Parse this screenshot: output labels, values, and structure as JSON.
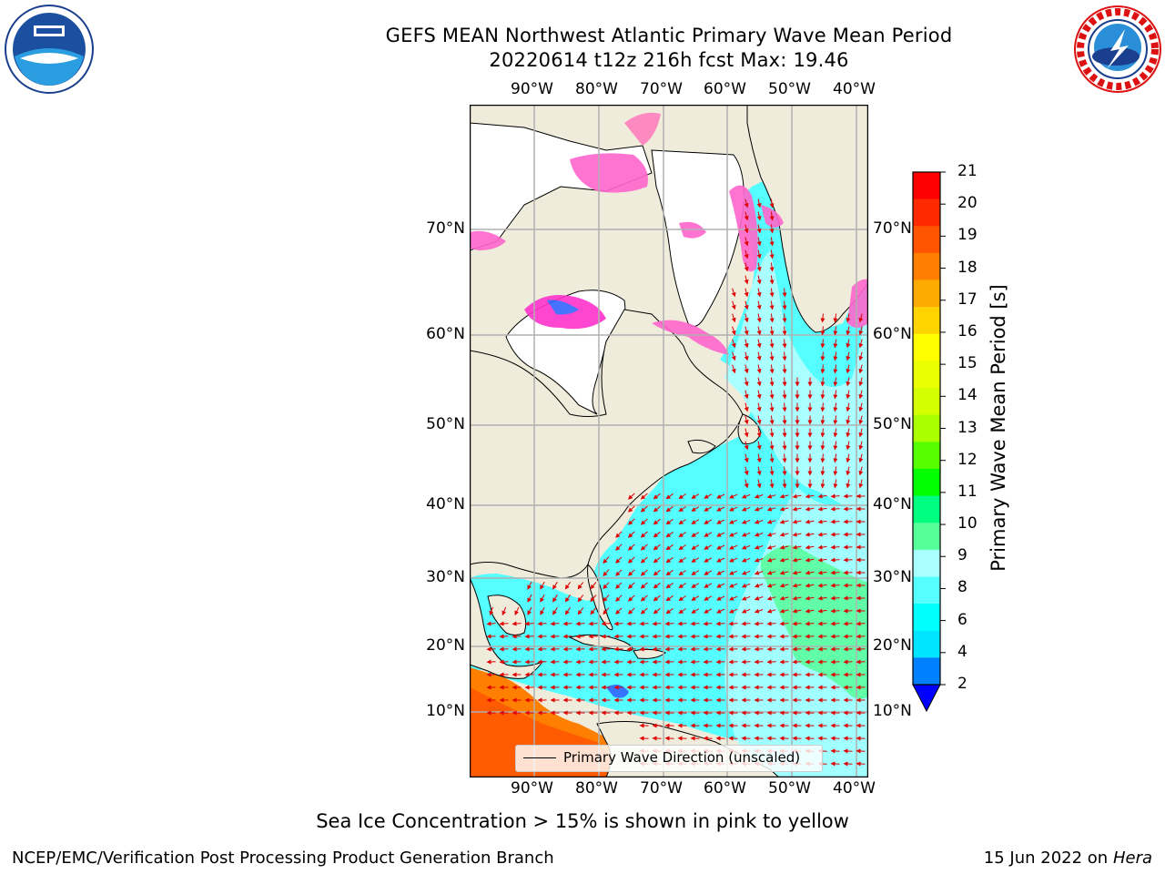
{
  "title": {
    "line1": "GEFS MEAN Northwest Atlantic Primary Wave Mean Period",
    "line2": "20220614 t12z 216h fcst   Max: 19.46"
  },
  "map": {
    "lon_ticks": [
      "90°W",
      "80°W",
      "70°W",
      "60°W",
      "50°W",
      "40°W"
    ],
    "lat_ticks_left": [
      "70°N",
      "60°N",
      "50°N",
      "40°N",
      "30°N",
      "20°N",
      "10°N"
    ],
    "lat_ticks_right": [
      "70°N",
      "60°N",
      "50°N",
      "40°N",
      "30°N",
      "20°N",
      "10°N"
    ],
    "legend_label": "Primary Wave Direction (unscaled)",
    "arrow_color": "#e00000",
    "land_color": "#efecdc",
    "gridline_color": "#b0b0b0"
  },
  "colorbar": {
    "title": "Primary Wave Mean Period [s]",
    "tick_labels": [
      "21",
      "20",
      "19",
      "18",
      "17",
      "16",
      "15",
      "14",
      "13",
      "12",
      "11",
      "10",
      "9",
      "8",
      "6",
      "4",
      "2"
    ],
    "colors_top_to_bottom": [
      "#ff0000",
      "#ff2a00",
      "#ff5500",
      "#ff7f00",
      "#ffaa00",
      "#ffd400",
      "#ffff00",
      "#eaff00",
      "#d4ff00",
      "#aaff00",
      "#55ff00",
      "#00ff00",
      "#00ff80",
      "#55ff99",
      "#aaffff",
      "#55ffff",
      "#00ffff",
      "#00e5ff",
      "#007fff"
    ],
    "under_color": "#0000ff"
  },
  "footer": {
    "note": "Sea Ice Concentration > 15% is shown in pink to yellow",
    "left": "NCEP/EMC/Verification Post Processing Product Generation Branch",
    "date": "15 Jun 2022 on",
    "machine": "Hera"
  }
}
